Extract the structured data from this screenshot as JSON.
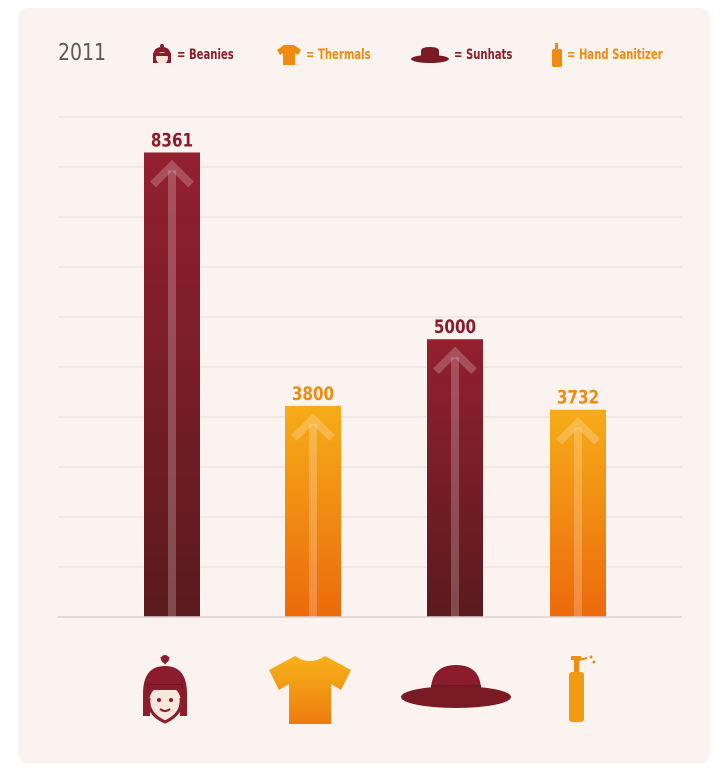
{
  "year": "2011",
  "legend": [
    {
      "icon": "beanie-icon",
      "label": "= Beanies",
      "color": "#8b1c2c"
    },
    {
      "icon": "thermal-shirt-icon",
      "label": "= Thermals",
      "color": "#f08a10"
    },
    {
      "icon": "sunhat-icon",
      "label": "= Sunhats",
      "color": "#8b1c2c"
    },
    {
      "icon": "sanitizer-bottle-icon",
      "label": "= Hand Sanitizer",
      "color": "#f08a10"
    }
  ],
  "chart_data": {
    "type": "bar",
    "categories": [
      "Beanies",
      "Thermals",
      "Sunhats",
      "Hand Sanitizer"
    ],
    "values": [
      8361,
      3800,
      5000,
      3732
    ],
    "data_labels": [
      "8361",
      "3800",
      "5000",
      "3732"
    ],
    "ylim": [
      0,
      9000
    ],
    "grid": true,
    "legend_position": "top",
    "colors": [
      "#8b1c2c",
      "#f08a10",
      "#8b1c2c",
      "#f08a10"
    ]
  }
}
